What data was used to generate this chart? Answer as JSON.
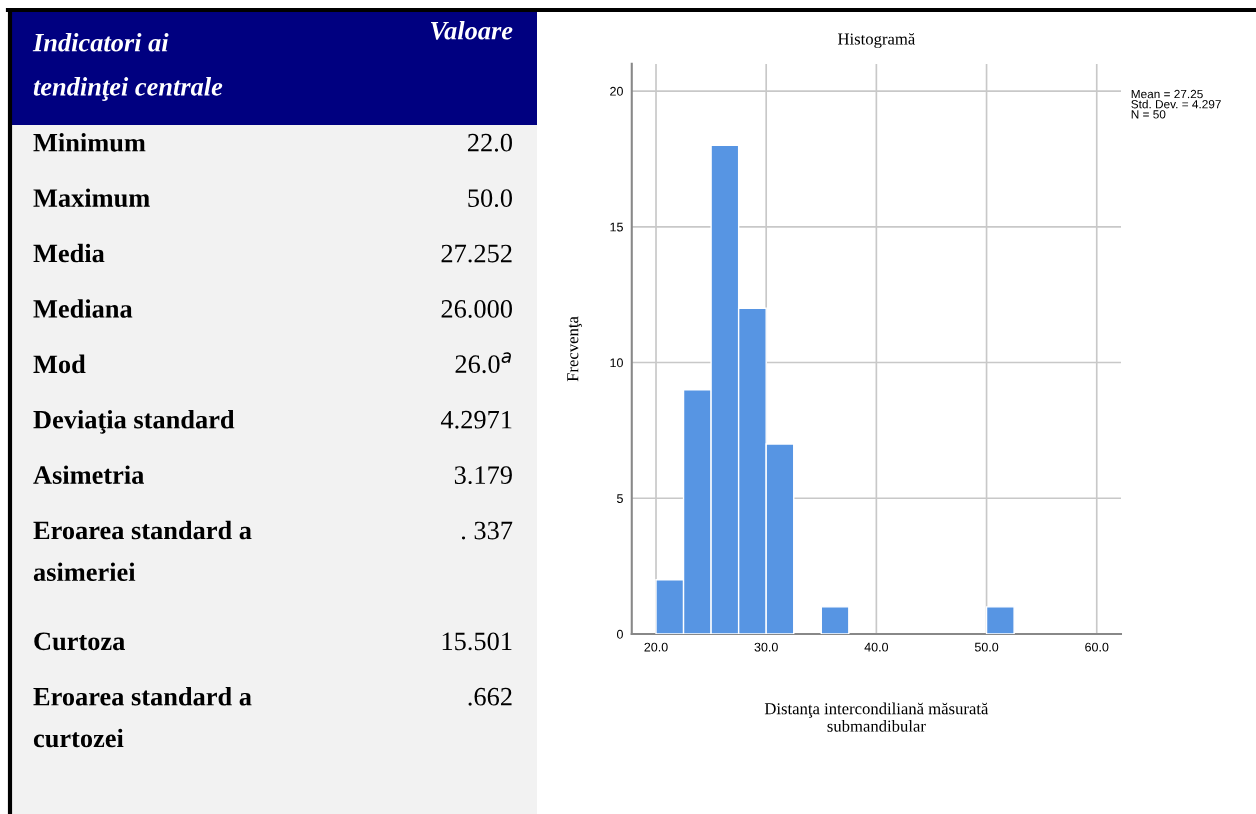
{
  "chart_data": [
    {
      "type": "other",
      "title": "Indicatori ai\ntendinţei centrale",
      "subtitle": "Valoare",
      "categories": [
        "Minimum",
        "Maximum",
        "Media",
        "Mediana",
        "Mod",
        "Deviaţia standard",
        "Asimetria",
        "Eroarea standard a\nasimeriei",
        "Curtoza",
        "Eroarea standard a\ncurtozei"
      ],
      "value_labels": [
        "22.0",
        "50.0",
        "27.252",
        "26.000",
        "26.0$^{a}$",
        "4.2971",
        "3.179",
        ". 337",
        "15.501",
        ".662"
      ]
    },
    {
      "type": "histogram",
      "title": "Histogramă",
      "xlabel": "Distanţa intercondiliană măsurată\nsubmandibular",
      "ylabel": "Frecvenţa",
      "bins": [
        20,
        22.5,
        25,
        27.5,
        30,
        32.5,
        35,
        37.5,
        40,
        42.5,
        45,
        47.5,
        50,
        52.5
      ],
      "values": [
        2,
        9,
        18,
        12,
        7,
        0,
        1,
        0,
        0,
        0,
        0,
        0,
        1
      ],
      "color": "#5795e3",
      "xlim": [
        17.8,
        62.2
      ],
      "xticks": [
        {
          "value": 20,
          "label": "20.0"
        },
        {
          "value": 30,
          "label": "30.0"
        },
        {
          "value": 40,
          "label": "40.0"
        },
        {
          "value": 50,
          "label": "50.0"
        },
        {
          "value": 60,
          "label": "60.0"
        }
      ],
      "ylim": [
        0,
        21
      ],
      "yticks": [
        0,
        5,
        10,
        15,
        20
      ],
      "grid": true,
      "annotations": [
        "Mean = 27.25\nStd. Dev. = 4.297\nN = 50"
      ]
    }
  ]
}
